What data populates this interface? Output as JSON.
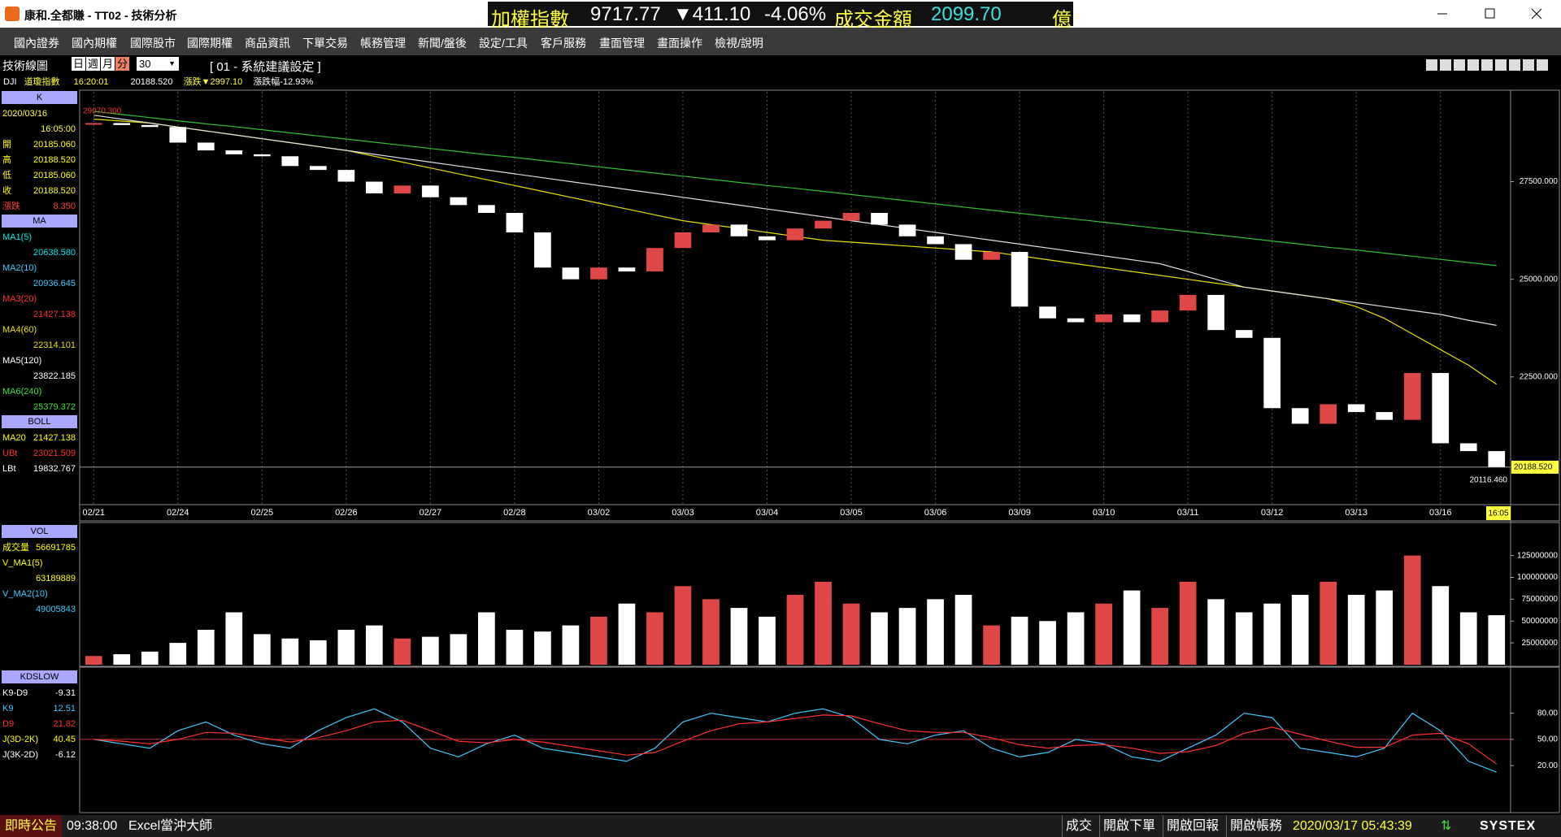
{
  "window": {
    "title": "康和.全都賺 - TT02 - 技術分析",
    "ticker": {
      "name": "加權指數",
      "value": "9717.77",
      "change": "▼411.10",
      "pct": "-4.06%",
      "turnover_label": "成交金額",
      "turnover": "2099.70",
      "unit": "億"
    }
  },
  "menu": [
    "國內證券",
    "國內期權",
    "國際股市",
    "國際期權",
    "商品資訊",
    "下單交易",
    "帳務管理",
    "新聞/盤後",
    "設定/工具",
    "客戶服務",
    "畫面管理",
    "畫面操作",
    "檢視/說明"
  ],
  "toolbar": {
    "title": "技術線圖",
    "periods": [
      "日",
      "週",
      "月",
      "分"
    ],
    "interval": "30",
    "setting": "[ 01 - 系統建議設定 ]"
  },
  "quote": {
    "code": "DJI",
    "name": "道瓊指數",
    "time": "16:20:01",
    "price": "20188.520",
    "change": "漲跌▼2997.10",
    "pct": "漲跌幅-12.93%"
  },
  "info_panel": {
    "k": {
      "header": "K",
      "date": "2020/03/16",
      "time": "16:05:00",
      "rows": [
        {
          "label": "開",
          "value": "20185.060",
          "color": "#ffff00"
        },
        {
          "label": "高",
          "value": "20188.520",
          "color": "#ffff00"
        },
        {
          "label": "低",
          "value": "20185.060",
          "color": "#ffff00"
        },
        {
          "value": "20188.520",
          "color": "#ffff00"
        },
        {
          "label": "漲跌",
          "value": "8.350",
          "color": "#ff4040"
        }
      ]
    },
    "ma": {
      "header": "MA",
      "rows": [
        {
          "label": "MA1(5)",
          "value": "20638.580",
          "color": "#00e8e8"
        },
        {
          "label": "MA2(10)",
          "value": "20936.645",
          "color": "#40c8ff"
        },
        {
          "label": "MA3(20)",
          "value": "21427.138",
          "color": "#ff3030"
        },
        {
          "value": "22314.101",
          "color": "#e8e000"
        },
        {
          "value": "23822.185",
          "color": "#ffffff"
        },
        {
          "value": "25379.372",
          "color": "#40e040"
        }
      ]
    },
    "boll": {
      "header": "BOLL",
      "rows": [
        {
          "label": "MA20",
          "value": "21427.138",
          "color": "#ffff00"
        },
        {
          "label": "UBt",
          "value": "23021.509",
          "color": "#ff3030"
        },
        {
          "label": "LBt",
          "value": "19832.767",
          "color": "#ffffff"
        }
      ]
    },
    "vol": {
      "header": "VOL",
      "rows": [
        {
          "label": "成交量",
          "value": "56691785",
          "color": "#ffff00"
        },
        {
          "label": "V_MA1(5)",
          "value": "63189889",
          "color": "#ffff00"
        },
        {
          "label": "V_MA2(10)",
          "value": "49005843",
          "color": "#40c8ff"
        }
      ]
    },
    "kd": {
      "header": "KDSLOW",
      "rows": [
        {
          "label": "K9-D9",
          "value": "-9.31",
          "color": "#ffffff"
        },
        {
          "value": "12.51",
          "color": "#40c8ff"
        },
        {
          "value": "21.82",
          "color": "#ff3030"
        },
        {
          "label": "J(3D-2K)",
          "value": "40.45",
          "color": "#ffff00"
        },
        {
          "label": "J(3K-2D)",
          "value": "-6.12",
          "color": "#ffffff"
        }
      ]
    }
  },
  "chart_data": [
    {
      "type": "candlestick",
      "categories": [
        "02/21",
        null,
        null,
        "02/24",
        null,
        null,
        "02/25",
        null,
        null,
        "02/26",
        null,
        null,
        "02/27",
        null,
        null,
        "02/28",
        null,
        null,
        "03/02",
        null,
        null,
        "03/03",
        null,
        null,
        "03/04",
        null,
        null,
        "03/05",
        null,
        null,
        "03/06",
        null,
        null,
        "03/09",
        null,
        null,
        "03/10",
        null,
        null,
        "03/11",
        null,
        null,
        "03/12",
        null,
        null,
        "03/13",
        null,
        null,
        "03/16",
        null,
        null
      ],
      "series": [
        {
          "name": "收",
          "color": "#e04848",
          "values": [
            29000,
            28950,
            28900,
            28500,
            28300,
            28200,
            28150,
            27900,
            27800,
            27500,
            27200,
            27400,
            27100,
            26900,
            26700,
            26200,
            25300,
            25000,
            25300,
            25200,
            25800,
            26200,
            26400,
            26100,
            26000,
            26300,
            26500,
            26700,
            26400,
            26100,
            25900,
            25500,
            25700,
            24300,
            24000,
            23900,
            24100,
            23900,
            24200,
            24600,
            23700,
            23500,
            21700,
            21300,
            21800,
            21600,
            21400,
            22600,
            20800,
            20600,
            20188.52
          ]
        },
        {
          "name": "MA4(60)",
          "color": "#e8e000",
          "values": [
            29100,
            29050,
            29000,
            28900,
            28800,
            28700,
            28600,
            28500,
            28400,
            28300,
            28150,
            28000,
            27850,
            27700,
            27550,
            27400,
            27250,
            27100,
            26950,
            26800,
            26650,
            26500,
            26400,
            26300,
            26200,
            26100,
            26000,
            25950,
            25900,
            25850,
            25800,
            25750,
            25700,
            25600,
            25500,
            25400,
            25300,
            25200,
            25100,
            25000,
            24900,
            24800,
            24700,
            24600,
            24500,
            24300,
            24000,
            23600,
            23200,
            22800,
            22310
          ]
        },
        {
          "name": "MA5(120)",
          "color": "#e0e0e0",
          "values": [
            29200,
            29100,
            29000,
            28900,
            28800,
            28700,
            28600,
            28500,
            28400,
            28300,
            28200,
            28100,
            28000,
            27900,
            27800,
            27700,
            27600,
            27500,
            27400,
            27300,
            27200,
            27100,
            27000,
            26900,
            26800,
            26700,
            26600,
            26500,
            26400,
            26300,
            26200,
            26100,
            26000,
            25900,
            25800,
            25700,
            25600,
            25500,
            25400,
            25200,
            25000,
            24800,
            24700,
            24600,
            24500,
            24400,
            24300,
            24200,
            24100,
            23950,
            23820
          ]
        },
        {
          "name": "MA6(240)",
          "color": "#30c030",
          "values": [
            29300,
            29220,
            29140,
            29060,
            28980,
            28910,
            28830,
            28750,
            28670,
            28590,
            28510,
            28430,
            28350,
            28270,
            28190,
            28120,
            28040,
            27960,
            27880,
            27800,
            27720,
            27640,
            27560,
            27480,
            27400,
            27330,
            27250,
            27170,
            27090,
            27010,
            26930,
            26850,
            26770,
            26690,
            26610,
            26540,
            26460,
            26380,
            26300,
            26220,
            26140,
            26060,
            25980,
            25900,
            25820,
            25750,
            25670,
            25590,
            25510,
            25430,
            25350
          ]
        }
      ],
      "down_color": "#ffffff",
      "ylim": [
        19250,
        29800
      ],
      "yticks": [
        {
          "value": 22500,
          "label": "22500.000"
        },
        {
          "value": 25000,
          "label": "25000.000"
        },
        {
          "value": 27500,
          "label": "27500.000"
        }
      ],
      "grid": true,
      "annotations": {
        "high": "29070.300",
        "last": "20188.520",
        "low": "20116.460",
        "time": "16:05"
      }
    },
    {
      "type": "bar",
      "values": [
        10000000,
        12000000,
        15000000,
        25000000,
        40000000,
        60000000,
        35000000,
        30000000,
        28000000,
        40000000,
        45000000,
        30000000,
        32000000,
        35000000,
        60000000,
        40000000,
        38000000,
        45000000,
        55000000,
        70000000,
        60000000,
        90000000,
        75000000,
        65000000,
        55000000,
        80000000,
        95000000,
        70000000,
        60000000,
        65000000,
        75000000,
        80000000,
        45000000,
        55000000,
        50000000,
        60000000,
        70000000,
        85000000,
        65000000,
        95000000,
        75000000,
        60000000,
        70000000,
        80000000,
        95000000,
        80000000,
        85000000,
        125000000,
        90000000,
        60000000,
        56691785
      ],
      "up_color": "#e04848",
      "down_color": "#ffffff",
      "ylim": [
        0,
        160000000
      ],
      "yticks": [
        25000000,
        50000000,
        75000000,
        100000000,
        125000000
      ]
    },
    {
      "type": "line",
      "series": [
        {
          "name": "K9",
          "color": "#40c8ff",
          "values": [
            50,
            45,
            40,
            60,
            70,
            55,
            45,
            40,
            60,
            75,
            85,
            70,
            40,
            30,
            45,
            55,
            40,
            35,
            30,
            25,
            40,
            70,
            80,
            75,
            70,
            80,
            85,
            75,
            50,
            45,
            55,
            60,
            40,
            30,
            35,
            50,
            45,
            30,
            25,
            40,
            55,
            80,
            75,
            40,
            35,
            30,
            40,
            80,
            60,
            25,
            12.51
          ]
        },
        {
          "name": "D9",
          "color": "#ff3030",
          "values": [
            50,
            48,
            45,
            50,
            58,
            57,
            52,
            47,
            52,
            60,
            70,
            72,
            60,
            48,
            46,
            50,
            47,
            42,
            37,
            32,
            35,
            48,
            60,
            68,
            70,
            74,
            78,
            77,
            68,
            60,
            58,
            58,
            52,
            44,
            40,
            43,
            44,
            40,
            34,
            36,
            43,
            57,
            64,
            56,
            48,
            41,
            41,
            55,
            57,
            45,
            21.82
          ]
        }
      ],
      "ylim": [
        -32,
        130
      ],
      "yticks": [
        {
          "value": 20,
          "label": "20.00"
        },
        {
          "value": 50,
          "label": "50.00"
        },
        {
          "value": 80,
          "label": "80.00"
        }
      ]
    }
  ],
  "status_bar": {
    "notice": "即時公告",
    "time": "09:38:00",
    "message": "Excel當沖大師",
    "buttons": [
      "成交",
      "開啟下單",
      "開啟回報",
      "開啟帳務"
    ],
    "datetime": "2020/03/17 05:43:39",
    "brand": "SYSTEX"
  }
}
